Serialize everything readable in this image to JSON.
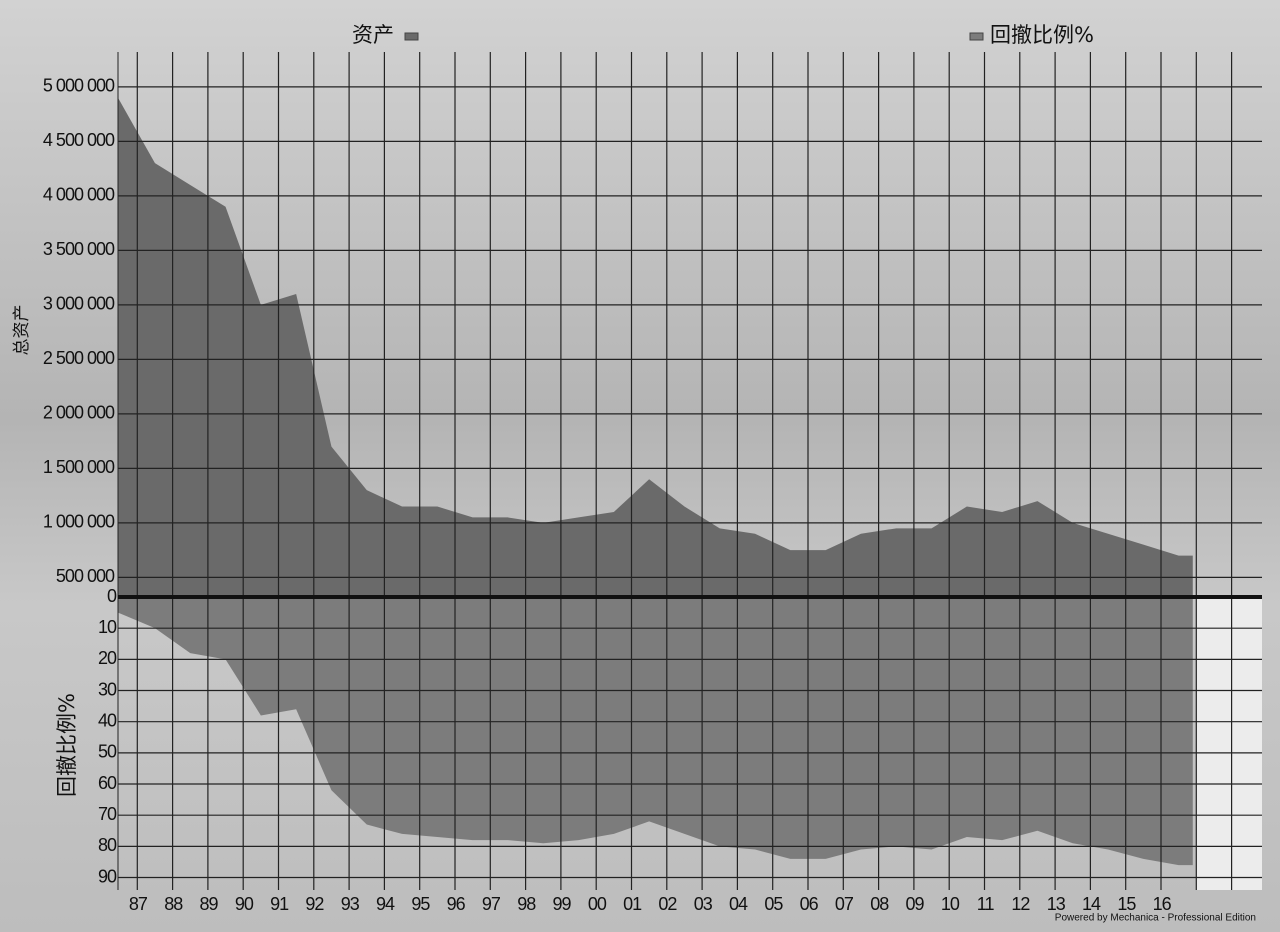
{
  "chart_data": {
    "type": "area",
    "categories": [
      null,
      "87",
      "88",
      "89",
      "90",
      "91",
      "92",
      "93",
      "94",
      "95",
      "96",
      "97",
      "98",
      "99",
      "00",
      "01",
      "02",
      "03",
      "04",
      "05",
      "06",
      "07",
      "08",
      "09",
      "10",
      "11",
      "12",
      "13",
      "14",
      "15",
      "16",
      null,
      null
    ],
    "ylabel": "总资产",
    "y2label": "回撤比例%",
    "footer": "Powered by Mechanica - Professional Edition",
    "series": [
      {
        "name": "资产",
        "color": "#6a6a6a",
        "axis": "y",
        "values": [
          4900000,
          4300000,
          4100000,
          3900000,
          3000000,
          3100000,
          1700000,
          1300000,
          1150000,
          1150000,
          1050000,
          1050000,
          1000000,
          1050000,
          1100000,
          1400000,
          1150000,
          950000,
          900000,
          750000,
          750000,
          900000,
          950000,
          950000,
          1150000,
          1100000,
          1200000,
          1000000,
          900000,
          800000,
          700000,
          null,
          null
        ]
      },
      {
        "name": "回撤比例%",
        "color": "#7c7c7c",
        "axis": "y2",
        "values": [
          5,
          10,
          18,
          20,
          38,
          36,
          62,
          73,
          76,
          77,
          78,
          78,
          79,
          78,
          76,
          72,
          76,
          80,
          81,
          84,
          84,
          81,
          80,
          81,
          77,
          78,
          75,
          79,
          81,
          84,
          86,
          null,
          null
        ]
      }
    ],
    "ylim": [
      320000,
      5320000
    ],
    "yticks": [
      {
        "value": 500000,
        "label": "500 000"
      },
      {
        "value": 1000000,
        "label": "1 000 000"
      },
      {
        "value": 1500000,
        "label": "1 500 000"
      },
      {
        "value": 2000000,
        "label": "2 000 000"
      },
      {
        "value": 2500000,
        "label": "2 500 000"
      },
      {
        "value": 3000000,
        "label": "3 000 000"
      },
      {
        "value": 3500000,
        "label": "3 500 000"
      },
      {
        "value": 4000000,
        "label": "4 000 000"
      },
      {
        "value": 4500000,
        "label": "4 500 000"
      },
      {
        "value": 5000000,
        "label": "5 000 000"
      }
    ],
    "y2lim": [
      0,
      94
    ],
    "y2ticks": [
      0,
      10,
      20,
      30,
      40,
      50,
      60,
      70,
      80,
      90
    ],
    "grid": true
  }
}
